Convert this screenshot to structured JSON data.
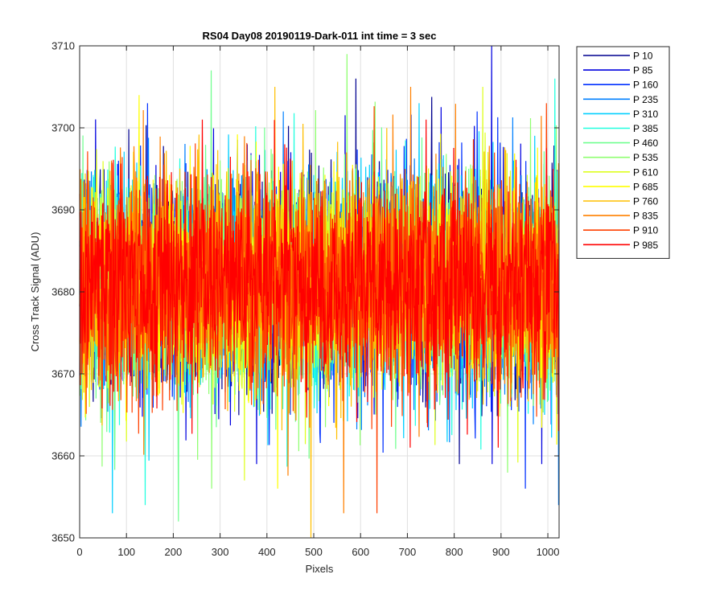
{
  "chart_data": {
    "type": "line",
    "title": "RS04 Day08 20190119-Dark-011 int time = 3 sec",
    "xlabel": "Pixels",
    "ylabel": "Cross Track Signal (ADU)",
    "xlim": [
      0,
      1024
    ],
    "ylim": [
      3650,
      3710
    ],
    "xticks": [
      0,
      100,
      200,
      300,
      400,
      500,
      600,
      700,
      800,
      900,
      1000
    ],
    "yticks": [
      3650,
      3660,
      3670,
      3680,
      3690,
      3700,
      3710
    ],
    "grid": true,
    "legend_position": "outside-top-right",
    "n_points": 1024,
    "series": [
      {
        "name": "P 10",
        "color": "#00008F",
        "mean": 3681,
        "min": 3659,
        "max": 3706
      },
      {
        "name": "P 85",
        "color": "#0000DF",
        "mean": 3681,
        "min": 3659,
        "max": 3710
      },
      {
        "name": "P 160",
        "color": "#0030FF",
        "mean": 3681,
        "min": 3656,
        "max": 3703
      },
      {
        "name": "P 235",
        "color": "#0080FF",
        "mean": 3681,
        "min": 3654,
        "max": 3702
      },
      {
        "name": "P 310",
        "color": "#00CFFF",
        "mean": 3681,
        "min": 3653,
        "max": 3703
      },
      {
        "name": "P 385",
        "color": "#20FFDF",
        "mean": 3681,
        "min": 3654,
        "max": 3706
      },
      {
        "name": "P 460",
        "color": "#70FF8F",
        "mean": 3681,
        "min": 3652,
        "max": 3707
      },
      {
        "name": "P 535",
        "color": "#8FFF70",
        "mean": 3681,
        "min": 3656,
        "max": 3709
      },
      {
        "name": "P 610",
        "color": "#DFFF20",
        "mean": 3681,
        "min": 3657,
        "max": 3705
      },
      {
        "name": "P 685",
        "color": "#FFFF00",
        "mean": 3681,
        "min": 3656,
        "max": 3704
      },
      {
        "name": "P 760",
        "color": "#FFBF00",
        "mean": 3681,
        "min": 3650,
        "max": 3705
      },
      {
        "name": "P 835",
        "color": "#FF8000",
        "mean": 3681,
        "min": 3653,
        "max": 3705
      },
      {
        "name": "P 910",
        "color": "#FF4000",
        "mean": 3681,
        "min": 3653,
        "max": 3703
      },
      {
        "name": "P 985",
        "color": "#FF0000",
        "mean": 3681,
        "min": 3661,
        "max": 3701
      }
    ]
  }
}
